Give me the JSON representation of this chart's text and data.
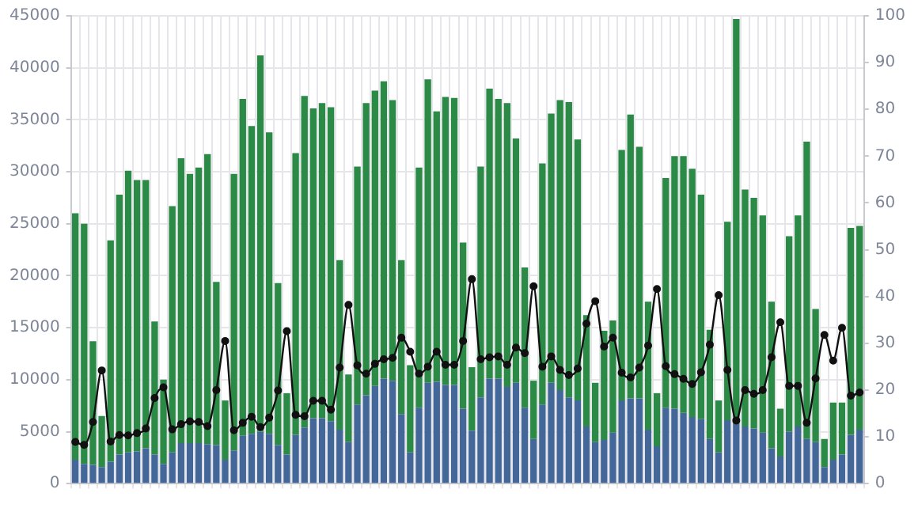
{
  "chart_data": {
    "type": "bar",
    "stacked": true,
    "categories": [
      null,
      null,
      null,
      null,
      null,
      null,
      null,
      null,
      null,
      null,
      null,
      null,
      null,
      null,
      null,
      null,
      null,
      null,
      null,
      null,
      null,
      null,
      null,
      null,
      null,
      null,
      null,
      null,
      null,
      null,
      null,
      null,
      null,
      null,
      null,
      null,
      null,
      null,
      null,
      null,
      null,
      null,
      null,
      null,
      null,
      null,
      null,
      null,
      null,
      null,
      null,
      null,
      null,
      null,
      null,
      null,
      null,
      null,
      null,
      null,
      null,
      null,
      null,
      null,
      null,
      null,
      null,
      null,
      null,
      null,
      null,
      null,
      null,
      null,
      null,
      null,
      null,
      null,
      null,
      null,
      null,
      null,
      null,
      null,
      null,
      null,
      null,
      null,
      null,
      null
    ],
    "series": [
      {
        "color": "#44679a",
        "values": [
          2300,
          1900,
          1800,
          1600,
          2100,
          2800,
          3000,
          3100,
          3400,
          2800,
          1900,
          3000,
          3900,
          3900,
          3900,
          3800,
          3700,
          2300,
          3200,
          4600,
          4800,
          5000,
          4800,
          3700,
          2800,
          4700,
          5400,
          6300,
          6300,
          6000,
          5200,
          4000,
          7600,
          8500,
          9400,
          10100,
          9900,
          6700,
          3000,
          7300,
          9700,
          9800,
          9500,
          9500,
          7200,
          5100,
          8300,
          10100,
          10100,
          9300,
          9700,
          7300,
          4300,
          7600,
          9700,
          9000,
          8300,
          8000,
          5500,
          4000,
          4200,
          4900,
          8000,
          8200,
          8200,
          5200,
          3600,
          7300,
          7200,
          6800,
          6400,
          6200,
          4300,
          3000,
          6100,
          5800,
          5500,
          5300,
          4900,
          3400,
          2600,
          5000,
          5500,
          4300,
          4000,
          1600,
          2300,
          2800,
          4700,
          5200
        ]
      },
      {
        "color": "#2a8a46",
        "values": [
          23700,
          23100,
          11900,
          4900,
          21300,
          25000,
          27100,
          26100,
          25800,
          12800,
          8100,
          23700,
          27400,
          25900,
          26500,
          27900,
          15700,
          5700,
          26600,
          32400,
          29600,
          36200,
          29000,
          15600,
          5900,
          27100,
          31900,
          29800,
          30300,
          30200,
          16300,
          6500,
          22900,
          28100,
          28400,
          28600,
          27000,
          14800,
          8400,
          23100,
          29200,
          26000,
          27700,
          27600,
          16000,
          6100,
          22200,
          27900,
          26900,
          27300,
          23500,
          13500,
          5600,
          23200,
          25900,
          27900,
          28400,
          25100,
          10700,
          5700,
          10500,
          10800,
          24100,
          27300,
          24200,
          12300,
          5100,
          22100,
          24300,
          24700,
          23900,
          21600,
          10500,
          5000,
          19100,
          38900,
          22800,
          22200,
          20900,
          14100,
          4600,
          18800,
          20300,
          28600,
          12800,
          2700,
          5500,
          5000,
          19900,
          19600
        ]
      },
      {
        "type": "line",
        "axis": "y2",
        "color": "#111111",
        "marker": "circle",
        "values": [
          8.9,
          8.3,
          13.2,
          24.2,
          9.0,
          10.4,
          10.3,
          10.8,
          11.8,
          18.3,
          20.6,
          11.6,
          12.7,
          13.3,
          13.2,
          12.3,
          20.0,
          30.5,
          11.4,
          13.0,
          14.3,
          12.1,
          14.1,
          19.9,
          32.6,
          14.7,
          14.4,
          17.7,
          17.7,
          15.8,
          24.8,
          38.2,
          25.3,
          23.5,
          25.6,
          26.6,
          26.9,
          31.2,
          28.2,
          23.5,
          25.0,
          28.2,
          25.4,
          25.4,
          30.5,
          43.7,
          26.6,
          27.0,
          27.2,
          25.4,
          29.1,
          27.9,
          42.2,
          25.0,
          27.2,
          24.3,
          23.2,
          24.6,
          34.2,
          39.0,
          29.3,
          31.2,
          23.7,
          22.7,
          24.8,
          29.5,
          41.6,
          25.1,
          23.4,
          22.4,
          21.3,
          23.8,
          29.7,
          40.3,
          24.3,
          13.5,
          20.0,
          19.2,
          20.0,
          27.0,
          34.5,
          20.9,
          20.9,
          13.0,
          22.5,
          31.8,
          26.3,
          33.3,
          18.8,
          19.5
        ]
      }
    ],
    "ylim": [
      0,
      45000
    ],
    "yticks": [
      0,
      5000,
      10000,
      15000,
      20000,
      25000,
      30000,
      35000,
      40000,
      45000
    ],
    "y2lim": [
      0,
      100
    ],
    "y2ticks": [
      0,
      10,
      20,
      30,
      40,
      50,
      60,
      70,
      80,
      90,
      100
    ],
    "grid": true,
    "legend": false
  }
}
